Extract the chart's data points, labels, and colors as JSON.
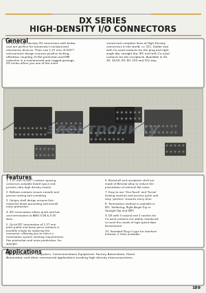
{
  "title_line1": "DX SERIES",
  "title_line2": "HIGH-DENSITY I/O CONNECTORS",
  "section_general_title": "General",
  "general_col1": "DX series high-density I/O connectors with below cost are perfect for tomorrow's miniaturized electronics devices. Their size 1.27 mm (0.050\") interconnect design ensures positive locking, effortless coupling, Hi-Rel protection and EMI reduction in a miniaturized and rugged package. DX series offers you one of the most",
  "general_col2": "varied and complete lines of High-Density connectors in the world, i.e. IDC, Solder and with Co-axial contacts for the plug and right angle dip, straight dip, IDC and with Co-axial contacts for the receptacle. Available in 20, 26, 34,50, 60, 80, 100 and 152 way.",
  "section_features_title": "Features",
  "features_left": [
    "1. 1.27 mm (0.050\") contact spacing conserves valuable board space and permits ultra-high density results.",
    "2. Bellows contacts ensure smooth and precise mating and unmating.",
    "3. Unique shell design ensures first mate/last break grounding and overall noise protection.",
    "4. IDC termination allows quick and low cost termination to AWG 0.08 & 0.35 wires.",
    "5. Quick IDC termination of 1.27 mm pitch public and loose piece contacts is possible simply by replacing the connector, allowing you to select a termination system meeting requirements. Has production and mass production, for example."
  ],
  "features_right": [
    "6. Backshell and receptacle shell are made of Bimetal alloy to reduce the penetration of external flat noise.",
    "7. Easy to use 'One-Touch' and 'Screw' locking matches and assures quick and easy 'positive' closures every time.",
    "8. Termination method is available in IDC, Soldering, Right Angle Dip or Straight Dip and SMT.",
    "9. DX with 3 coaxial and 3 cavities for Co-axial contacts are widely introduced to meet the needs of high speed data transmission.",
    "10. Standard Plug-In type for interface between 2 Units available."
  ],
  "section_applications_title": "Applications",
  "applications_text": "Office Automation, Computers, Communications Equipment, Factory Automation, Home Automation and other commercial applications needing high density interconnections.",
  "page_number": "189",
  "title_color": "#1a1a1a",
  "section_title_color": "#1a1a1a",
  "body_text_color": "#2a2a2a",
  "box_border_color": "#555555",
  "line_color": "#888888",
  "orange_line_color": "#c8860a",
  "bg_color": "#f0f0eb"
}
